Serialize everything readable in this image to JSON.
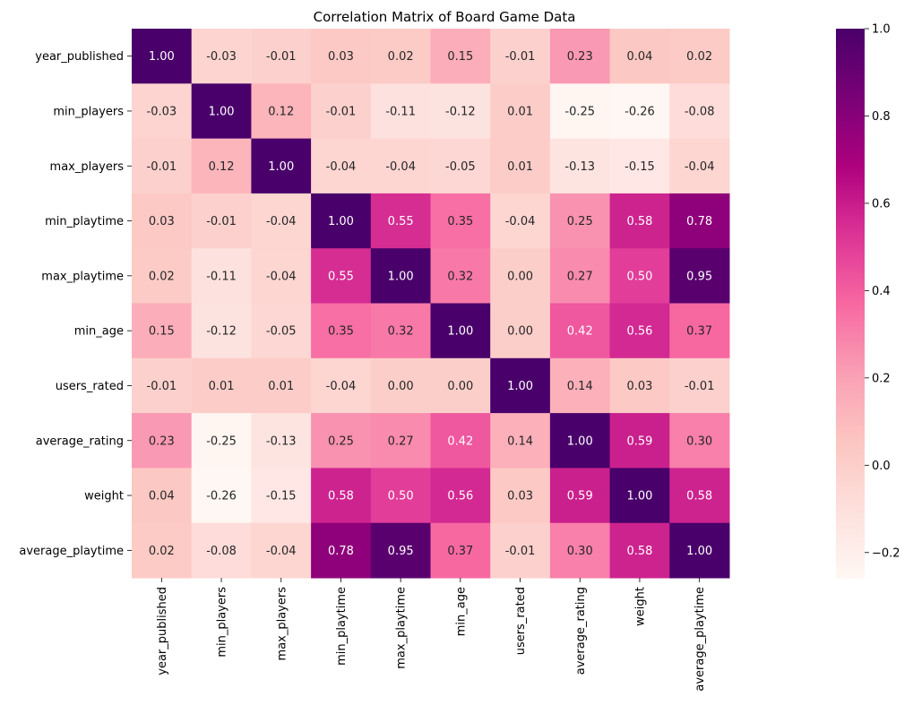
{
  "chart_data": {
    "type": "heatmap",
    "title": "Correlation Matrix of Board Game Data",
    "rows": [
      "year_published",
      "min_players",
      "max_players",
      "min_playtime",
      "max_playtime",
      "min_age",
      "users_rated",
      "average_rating",
      "weight",
      "average_playtime"
    ],
    "columns": [
      "year_published",
      "min_players",
      "max_players",
      "min_playtime",
      "max_playtime",
      "min_age",
      "users_rated",
      "average_rating",
      "weight",
      "average_playtime"
    ],
    "values": [
      [
        1.0,
        -0.03,
        -0.01,
        0.03,
        0.02,
        0.15,
        -0.01,
        0.23,
        0.04,
        0.02
      ],
      [
        -0.03,
        1.0,
        0.12,
        -0.01,
        -0.11,
        -0.12,
        0.01,
        -0.25,
        -0.26,
        -0.08
      ],
      [
        -0.01,
        0.12,
        1.0,
        -0.04,
        -0.04,
        -0.05,
        0.01,
        -0.13,
        -0.15,
        -0.04
      ],
      [
        0.03,
        -0.01,
        -0.04,
        1.0,
        0.55,
        0.35,
        -0.04,
        0.25,
        0.58,
        0.78
      ],
      [
        0.02,
        -0.11,
        -0.04,
        0.55,
        1.0,
        0.32,
        -0.0,
        0.27,
        0.5,
        0.95
      ],
      [
        0.15,
        -0.12,
        -0.05,
        0.35,
        0.32,
        1.0,
        0.0,
        0.42,
        0.56,
        0.37
      ],
      [
        -0.01,
        0.01,
        0.01,
        -0.04,
        -0.0,
        0.0,
        1.0,
        0.14,
        0.03,
        -0.01
      ],
      [
        0.23,
        -0.25,
        -0.13,
        0.25,
        0.27,
        0.42,
        0.14,
        1.0,
        0.59,
        0.3
      ],
      [
        0.04,
        -0.26,
        -0.15,
        0.58,
        0.5,
        0.56,
        0.03,
        0.59,
        1.0,
        0.58
      ],
      [
        0.02,
        -0.08,
        -0.04,
        0.78,
        0.95,
        0.37,
        -0.01,
        0.3,
        0.58,
        1.0
      ]
    ],
    "annotation_format": "0.00",
    "colormap": "RdPu",
    "color_range": [
      -0.26,
      1.0
    ],
    "colorbar_ticks": [
      1.0,
      0.8,
      0.6,
      0.4,
      0.2,
      0.0,
      -0.2
    ],
    "colorbar_tick_labels": [
      "1.0",
      "0.8",
      "0.6",
      "0.4",
      "0.2",
      "0.0",
      "−0.2"
    ],
    "grid": false,
    "legend": "colorbar-right"
  }
}
